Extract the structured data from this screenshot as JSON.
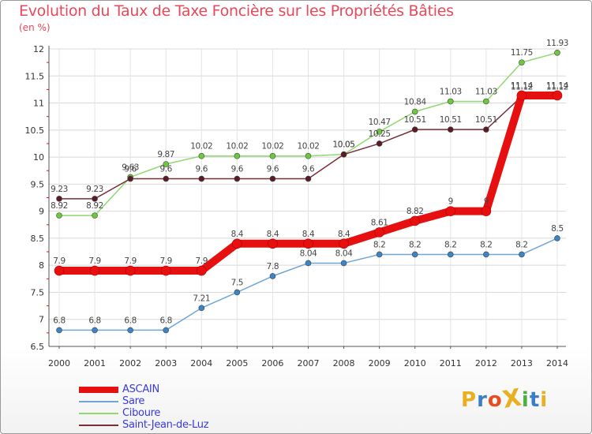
{
  "title": "Evolution du Taux de Taxe Foncière sur les Propriétés Bâties",
  "subtitle": "(en %)",
  "logo": {
    "text": "ProXiti",
    "colors": [
      "#e8b020",
      "#3b7ec8",
      "#e84d20",
      "#e8b020",
      "#4ab040",
      "#3b7ec8",
      "#e8b020"
    ]
  },
  "chart_data": {
    "type": "line",
    "title": "Evolution du Taux de Taxe Foncière sur les Propriétés Bâties",
    "ylabel": "(en %)",
    "xlabel": "",
    "x": [
      "2000",
      "2001",
      "2002",
      "2003",
      "2004",
      "2005",
      "2006",
      "2007",
      "2008",
      "2009",
      "2010",
      "2011",
      "2012",
      "2013",
      "2014"
    ],
    "ylim": [
      6.5,
      12
    ],
    "yticks": [
      6.5,
      7,
      7.5,
      8,
      8.5,
      9,
      9.5,
      10,
      10.5,
      11,
      11.5,
      12
    ],
    "ytick_labels": [
      "6.5",
      "7",
      "7.5",
      "8",
      "8.5",
      "9",
      "9.5",
      "10",
      "10.5",
      "11",
      "11.5",
      "12"
    ],
    "grid": true,
    "legend_position": "bottom-left",
    "series": [
      {
        "name": "ASCAIN",
        "color": "#e61010",
        "marker_color": "#e61010",
        "values": [
          7.9,
          7.9,
          7.9,
          7.9,
          7.9,
          8.4,
          8.4,
          8.4,
          8.4,
          8.61,
          8.82,
          9,
          9,
          11.14,
          11.14
        ],
        "labels": [
          "7.9",
          "7.9",
          "7.9",
          "7.9",
          "7.9",
          "8.4",
          "8.4",
          "8.4",
          "8.4",
          "8.61",
          "8.82",
          "9",
          "9",
          "11.14",
          "11.14"
        ]
      },
      {
        "name": "Sare",
        "color": "#6fa6d6",
        "marker_color": "#3a85c8",
        "values": [
          6.8,
          6.8,
          6.8,
          6.8,
          7.21,
          7.5,
          7.8,
          8.04,
          8.04,
          8.2,
          8.2,
          8.2,
          8.2,
          8.2,
          8.5
        ],
        "labels": [
          "6.8",
          "6.8",
          "6.8",
          "6.8",
          "7.21",
          "7.5",
          "7.8",
          "8.04",
          "8.04",
          "8.2",
          "8.2",
          "8.2",
          "8.2",
          "8.2",
          "8.5"
        ]
      },
      {
        "name": "Ciboure",
        "color": "#8fd870",
        "marker_color": "#6cc83c",
        "values": [
          8.92,
          8.92,
          9.63,
          9.87,
          10.02,
          10.02,
          10.02,
          10.02,
          10.05,
          10.47,
          10.84,
          11.03,
          11.03,
          11.75,
          11.93
        ],
        "labels": [
          "8.92",
          "8.92",
          "9.63",
          "9.87",
          "10.02",
          "10.02",
          "10.02",
          "10.02",
          "10.05",
          "10.47",
          "10.84",
          "11.03",
          "11.03",
          "11.75",
          "11.93"
        ]
      },
      {
        "name": "Saint-Jean-de-Luz",
        "color": "#7a2e38",
        "marker_color": "#5a1c24",
        "values": [
          9.23,
          9.23,
          9.6,
          9.6,
          9.6,
          9.6,
          9.6,
          9.6,
          10.05,
          10.25,
          10.51,
          10.51,
          10.51,
          11.12,
          11.12
        ],
        "labels": [
          "9.23",
          "9.23",
          "9.6",
          "9.6",
          "9.6",
          "9.6",
          "9.6",
          "9.6",
          "10.05",
          "10.25",
          "10.51",
          "10.51",
          "10.51",
          "11.12",
          "11.12"
        ]
      }
    ]
  }
}
